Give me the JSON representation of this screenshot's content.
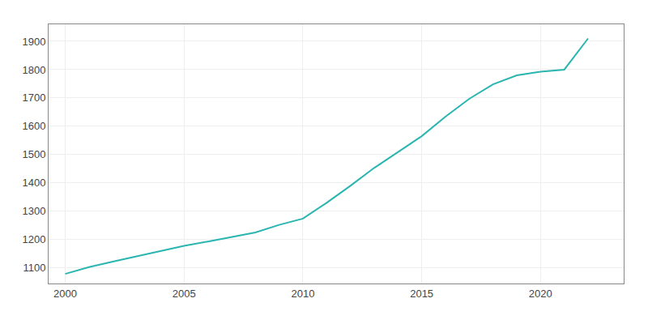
{
  "chart_data": {
    "type": "line",
    "x": [
      2000,
      2001,
      2002,
      2003,
      2004,
      2005,
      2006,
      2007,
      2008,
      2009,
      2010,
      2011,
      2012,
      2013,
      2014,
      2015,
      2016,
      2017,
      2018,
      2019,
      2020,
      2021,
      2022
    ],
    "values": [
      1079,
      1103,
      1122,
      1141,
      1160,
      1178,
      1193,
      1208,
      1225,
      1252,
      1274,
      1330,
      1390,
      1453,
      1510,
      1565,
      1634,
      1697,
      1748,
      1780,
      1793,
      1800,
      1910
    ],
    "color": "#2ab5b0",
    "xlim": [
      1999.3,
      2023.5
    ],
    "ylim": [
      1045,
      1960
    ],
    "xticks": [
      2000,
      2005,
      2010,
      2015,
      2020
    ],
    "yticks": [
      1100,
      1200,
      1300,
      1400,
      1500,
      1600,
      1700,
      1800,
      1900
    ],
    "grid": true
  }
}
